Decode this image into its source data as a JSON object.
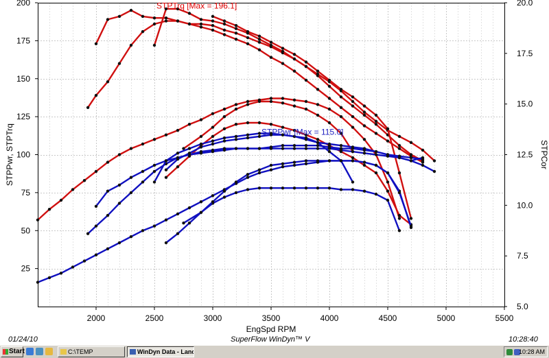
{
  "chart_data": {
    "type": "line",
    "xlabel": "EngSpd  RPM",
    "ylabel_left": "STPPwr, STPTrq",
    "ylabel_right": "STPCor",
    "xlim": [
      1500,
      5500
    ],
    "ylim_left": [
      0,
      200
    ],
    "ylim_right": [
      5.0,
      20.0
    ],
    "x_ticks": [
      "2000",
      "2500",
      "3000",
      "3500",
      "4000",
      "4500",
      "5000",
      "5500"
    ],
    "y_ticks_left": [
      "25",
      "50",
      "75",
      "100",
      "125",
      "150",
      "175",
      "200"
    ],
    "y_ticks_right": [
      "5.0",
      "7.5",
      "10.0",
      "12.5",
      "15.0",
      "17.5",
      "20.0"
    ],
    "grid": true,
    "annotations": [
      {
        "text": "STPTrq [Max = 196.1]",
        "x": 2600,
        "y": 198,
        "color": "#e00000"
      },
      {
        "text": "STPPwr [Max = 115.0]",
        "x": 3500,
        "y": 115,
        "color": "#2020c0"
      }
    ],
    "series": [
      {
        "group": "torque",
        "color": "#d01010",
        "x": [
          1500,
          1600,
          1700,
          1800,
          1900,
          2000,
          2100,
          2200,
          2300,
          2400,
          2500,
          2600,
          2700,
          2800,
          2900,
          3000,
          3100,
          3200,
          3300,
          3400,
          3500,
          3600,
          3700,
          3800,
          3900,
          4000,
          4100,
          4200,
          4300,
          4400,
          4500,
          4600
        ],
        "y": [
          57,
          64,
          70,
          77,
          83,
          89,
          95,
          100,
          104,
          107,
          110,
          113,
          116,
          120,
          123,
          127,
          130,
          133,
          135,
          136,
          137,
          137,
          136,
          135,
          133,
          130,
          125,
          118,
          110,
          100,
          82,
          58
        ]
      },
      {
        "group": "torque",
        "color": "#d01010",
        "x": [
          1930,
          2000,
          2100,
          2200,
          2300,
          2400,
          2500,
          2600,
          2700,
          2800,
          2900,
          3000,
          3100,
          3200,
          3300,
          3400,
          3500,
          3600,
          3700,
          3800,
          3900,
          4000,
          4100,
          4200,
          4300,
          4400,
          4500,
          4600,
          4700,
          4800
        ],
        "y": [
          131,
          139,
          148,
          160,
          172,
          181,
          186,
          188,
          188,
          186,
          184,
          182,
          179,
          176,
          173,
          169,
          164,
          160,
          155,
          149,
          143,
          137,
          131,
          125,
          119,
          114,
          109,
          104,
          99,
          95
        ]
      },
      {
        "group": "torque",
        "color": "#d01010",
        "x": [
          2000,
          2100,
          2200,
          2300,
          2400,
          2500,
          2600,
          2700,
          2800,
          2900,
          3000,
          3100,
          3200,
          3300,
          3400,
          3500,
          3600,
          3700,
          3800,
          3900,
          4000,
          4100,
          4200,
          4300,
          4400,
          4500,
          4600,
          4700,
          4800
        ],
        "y": [
          173,
          189,
          191,
          195,
          191,
          190,
          190,
          188,
          186,
          186,
          185,
          182,
          180,
          177,
          174,
          171,
          167,
          163,
          158,
          152,
          145,
          138,
          132,
          126,
          120,
          113,
          106,
          100,
          96
        ]
      },
      {
        "group": "torque",
        "color": "#d01010",
        "x": [
          2500,
          2600,
          2700,
          2800,
          2900,
          3000,
          3100,
          3200,
          3300,
          3400,
          3500,
          3600,
          3700,
          3800,
          3900,
          4000,
          4100,
          4200,
          4300,
          4400,
          4500,
          4600,
          4700,
          4800,
          4900
        ],
        "y": [
          172,
          196,
          196,
          193,
          189,
          188,
          186,
          183,
          180,
          176,
          172,
          168,
          163,
          158,
          153,
          148,
          142,
          135,
          128,
          122,
          116,
          112,
          108,
          103,
          96
        ]
      },
      {
        "group": "torque",
        "color": "#d01010",
        "x": [
          2600,
          2700,
          2800,
          2900,
          3000,
          3100,
          3200,
          3300,
          3400,
          3500,
          3600,
          3700,
          3800,
          3900,
          4000,
          4100,
          4200,
          4300,
          4400,
          4500,
          4600,
          4700
        ],
        "y": [
          85,
          92,
          99,
          106,
          112,
          117,
          120,
          121,
          121,
          120,
          118,
          116,
          113,
          110,
          106,
          102,
          98,
          93,
          88,
          76,
          60,
          54
        ]
      },
      {
        "group": "torque",
        "color": "#d01010",
        "x": [
          2750,
          2900,
          3000,
          3100,
          3200,
          3300,
          3400,
          3500,
          3600,
          3700,
          3800,
          3900,
          4000,
          4100,
          4200
        ],
        "y": [
          104,
          112,
          118,
          125,
          130,
          133,
          135,
          135,
          134,
          132,
          130,
          126,
          121,
          114,
          102
        ]
      },
      {
        "group": "torque",
        "color": "#d01010",
        "x": [
          3000,
          3100,
          3200,
          3300,
          3400,
          3500,
          3600,
          3700,
          3800,
          3900,
          4000,
          4100,
          4200,
          4300,
          4400,
          4500,
          4600,
          4700
        ],
        "y": [
          191,
          188,
          185,
          181,
          178,
          174,
          170,
          166,
          161,
          155,
          149,
          143,
          138,
          132,
          126,
          117,
          88,
          58
        ]
      },
      {
        "group": "power",
        "color": "#1010c0",
        "x": [
          1500,
          1600,
          1700,
          1800,
          1900,
          2000,
          2100,
          2200,
          2300,
          2400,
          2500,
          2600,
          2700,
          2800,
          2900,
          3000,
          3100,
          3200,
          3300,
          3400,
          3500,
          3600,
          3700,
          3800,
          3900,
          4000,
          4100,
          4200,
          4300,
          4400,
          4500,
          4600,
          4700
        ],
        "y": [
          16,
          19,
          22,
          26,
          30,
          34,
          38,
          42,
          46,
          50,
          53,
          57,
          61,
          65,
          69,
          73,
          77,
          81,
          85,
          88,
          90,
          92,
          93,
          94,
          95,
          96,
          96,
          96,
          95,
          93,
          88,
          76,
          52
        ]
      },
      {
        "group": "power",
        "color": "#1010c0",
        "x": [
          1930,
          2000,
          2100,
          2200,
          2300,
          2400,
          2500,
          2600,
          2700,
          2800,
          2900,
          3000,
          3100,
          3200,
          3300,
          3400,
          3500,
          3600,
          3700,
          3800,
          3900,
          4000,
          4100,
          4200,
          4300,
          4400,
          4500,
          4600,
          4700,
          4800
        ],
        "y": [
          48,
          53,
          60,
          68,
          75,
          82,
          89,
          94,
          98,
          100,
          102,
          103,
          104,
          104,
          104,
          104,
          105,
          106,
          106,
          106,
          106,
          105,
          104,
          104,
          103,
          102,
          100,
          99,
          98,
          97
        ]
      },
      {
        "group": "power",
        "color": "#1010c0",
        "x": [
          2000,
          2100,
          2200,
          2300,
          2400,
          2500,
          2600,
          2700,
          2800,
          2900,
          3000,
          3100,
          3200,
          3300,
          3400,
          3500,
          3600,
          3700,
          3800,
          3900,
          4000,
          4100,
          4200,
          4300,
          4400,
          4500,
          4600,
          4700,
          4800
        ],
        "y": [
          66,
          76,
          80,
          85,
          89,
          93,
          96,
          98,
          100,
          101,
          102,
          103,
          104,
          104,
          104,
          104,
          104,
          104,
          104,
          104,
          104,
          103,
          102,
          101,
          100,
          99,
          98,
          96,
          98
        ]
      },
      {
        "group": "power",
        "color": "#1010c0",
        "x": [
          2500,
          2600,
          2700,
          2800,
          2900,
          3000,
          3100,
          3200,
          3300,
          3400,
          3500,
          3600,
          3700,
          3800,
          3900,
          4000,
          4100,
          4200,
          4300,
          4400,
          4500,
          4600,
          4700,
          4800,
          4900
        ],
        "y": [
          82,
          96,
          101,
          104,
          107,
          109,
          111,
          112,
          113,
          114,
          114,
          113,
          112,
          110,
          108,
          107,
          106,
          105,
          104,
          102,
          100,
          98,
          96,
          93,
          89
        ]
      },
      {
        "group": "power",
        "color": "#1010c0",
        "x": [
          2600,
          2700,
          2800,
          2900,
          3000,
          3100,
          3200,
          3300,
          3400,
          3500,
          3600,
          3700,
          3800,
          3900,
          4000,
          4100,
          4200,
          4300,
          4400,
          4500,
          4600
        ],
        "y": [
          42,
          48,
          55,
          62,
          68,
          72,
          75,
          77,
          78,
          78,
          78,
          78,
          78,
          78,
          78,
          77,
          77,
          76,
          74,
          70,
          50
        ]
      },
      {
        "group": "power",
        "color": "#1010c0",
        "x": [
          2750,
          2900,
          3000,
          3100,
          3200,
          3300,
          3400,
          3500,
          3600,
          3700,
          3800,
          3900,
          4000,
          4100,
          4200,
          4300,
          4400,
          4500,
          4600,
          4700
        ],
        "y": [
          55,
          62,
          69,
          76,
          82,
          87,
          90,
          93,
          94,
          95,
          96,
          96,
          96,
          96,
          96,
          95,
          93,
          88,
          75,
          53
        ]
      },
      {
        "group": "power",
        "color": "#1010c0",
        "x": [
          2600,
          2700,
          2800,
          2900,
          3000,
          3100,
          3200,
          3300,
          3400,
          3500,
          3600,
          3700,
          3800,
          3900,
          4000,
          4100,
          4200
        ],
        "y": [
          90,
          97,
          101,
          105,
          107,
          109,
          110,
          111,
          112,
          113,
          113,
          112,
          111,
          108,
          102,
          96,
          82
        ]
      }
    ]
  },
  "footer": {
    "date": "01/24/10",
    "app_title": "SuperFlow WinDyn™ V",
    "time": "10:28:40"
  },
  "taskbar": {
    "start_label": "Start",
    "task_temp": "C:\\TEMP",
    "task_windyn": "WinDyn Data - Lance ...",
    "clock": "10:28 AM"
  }
}
